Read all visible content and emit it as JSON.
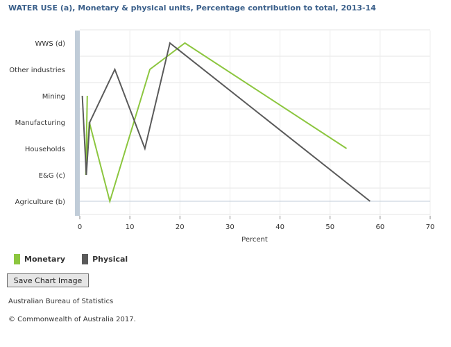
{
  "title": "WATER USE (a), Monetary & physical units, Percentage contribution to total, 2013-14",
  "chart_data": {
    "type": "line",
    "title": "WATER USE (a), Monetary & physical units, Percentage contribution to total, 2013-14",
    "xlabel": "Percent",
    "ylabel": "",
    "xlim": [
      0,
      70
    ],
    "x_ticks": [
      "0",
      "10",
      "20",
      "30",
      "40",
      "50",
      "60",
      "70"
    ],
    "categories": [
      "Agriculture (b)",
      "E&G (c)",
      "Households",
      "Manufacturing",
      "Mining",
      "Other industries",
      "WWS (d)"
    ],
    "grid": true,
    "legend": "bottom-left",
    "series": [
      {
        "name": "Monetary",
        "color": "#8cc63f",
        "points": [
          {
            "category": "Mining",
            "x": 1.5
          },
          {
            "category": "E&G (c)",
            "x": 1.2
          },
          {
            "category": "Manufacturing",
            "x": 1.9
          },
          {
            "category": "Agriculture (b)",
            "x": 6
          },
          {
            "category": "Other industries",
            "x": 14
          },
          {
            "category": "WWS (d)",
            "x": 21
          },
          {
            "category": "Households",
            "x": 53.3
          }
        ]
      },
      {
        "name": "Physical",
        "color": "#5a5a5a",
        "points": [
          {
            "category": "Mining",
            "x": 0.5
          },
          {
            "category": "E&G (c)",
            "x": 1.3
          },
          {
            "category": "Manufacturing",
            "x": 2
          },
          {
            "category": "Other industries",
            "x": 7
          },
          {
            "category": "Households",
            "x": 13
          },
          {
            "category": "WWS (d)",
            "x": 18
          },
          {
            "category": "Agriculture (b)",
            "x": 58
          }
        ]
      }
    ]
  },
  "save_button": {
    "label": "Save Chart Image"
  },
  "footer": {
    "source": "Australian Bureau of Statistics",
    "copyright": "© Commonwealth of Australia 2017."
  }
}
